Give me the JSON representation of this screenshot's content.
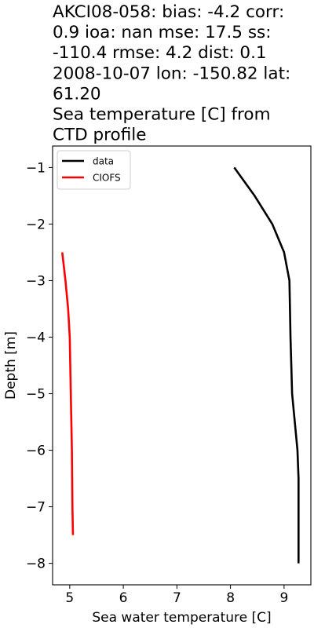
{
  "chart_data": {
    "type": "line",
    "title_lines": [
      "AKCI08-058: bias: -4.2  corr:",
      "0.9  ioa: nan  mse: 17.5  ss:",
      "-110.4  rmse: 4.2  dist: 0.1",
      "2008-10-07 lon: -150.82 lat:",
      "61.20",
      "Sea temperature [C] from",
      "CTD profile"
    ],
    "xlabel": "Sea water temperature [C]",
    "ylabel": "Depth [m]",
    "xlim": [
      4.68,
      9.5
    ],
    "ylim": [
      -8.38,
      -0.62
    ],
    "xticks": [
      5,
      6,
      7,
      8,
      9
    ],
    "yticks": [
      -1,
      -2,
      -3,
      -4,
      -5,
      -6,
      -7,
      -8
    ],
    "xtick_labels": [
      "5",
      "6",
      "7",
      "8",
      "9"
    ],
    "ytick_labels": [
      "−1",
      "−2",
      "−3",
      "−4",
      "−5",
      "−6",
      "−7",
      "−8"
    ],
    "grid": false,
    "legend_position": "upper-left",
    "series": [
      {
        "name": "data",
        "color": "#000000",
        "points": [
          {
            "x": 8.07,
            "y": -1.0
          },
          {
            "x": 8.45,
            "y": -1.5
          },
          {
            "x": 8.78,
            "y": -2.0
          },
          {
            "x": 9.0,
            "y": -2.5
          },
          {
            "x": 9.1,
            "y": -3.0
          },
          {
            "x": 9.12,
            "y": -4.0
          },
          {
            "x": 9.15,
            "y": -5.0
          },
          {
            "x": 9.25,
            "y": -6.0
          },
          {
            "x": 9.27,
            "y": -6.5
          },
          {
            "x": 9.27,
            "y": -8.0
          }
        ]
      },
      {
        "name": "CIOFS",
        "color": "#ff0000",
        "points": [
          {
            "x": 4.86,
            "y": -2.5
          },
          {
            "x": 4.92,
            "y": -3.0
          },
          {
            "x": 4.97,
            "y": -3.5
          },
          {
            "x": 5.0,
            "y": -4.0
          },
          {
            "x": 5.02,
            "y": -5.0
          },
          {
            "x": 5.04,
            "y": -6.0
          },
          {
            "x": 5.05,
            "y": -7.0
          },
          {
            "x": 5.06,
            "y": -7.5
          }
        ]
      }
    ]
  }
}
